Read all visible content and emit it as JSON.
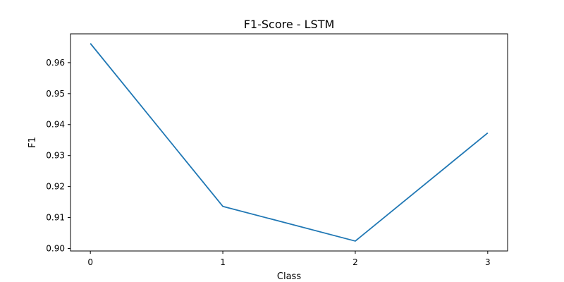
{
  "chart_data": {
    "type": "line",
    "title": "F1-Score - LSTM",
    "xlabel": "Class",
    "ylabel": "F1",
    "x": [
      0,
      1,
      2,
      3
    ],
    "y": [
      0.9662,
      0.9136,
      0.9024,
      0.9373
    ],
    "xlim": [
      -0.15,
      3.15
    ],
    "ylim": [
      0.8992,
      0.9693
    ],
    "xticks": [
      0,
      1,
      2,
      3
    ],
    "xtick_labels": [
      "0",
      "1",
      "2",
      "3"
    ],
    "yticks": [
      0.9,
      0.91,
      0.92,
      0.93,
      0.94,
      0.95,
      0.96
    ],
    "ytick_labels": [
      "0.90",
      "0.91",
      "0.92",
      "0.93",
      "0.94",
      "0.95",
      "0.96"
    ],
    "grid": false,
    "line_color": "#1f77b4"
  }
}
